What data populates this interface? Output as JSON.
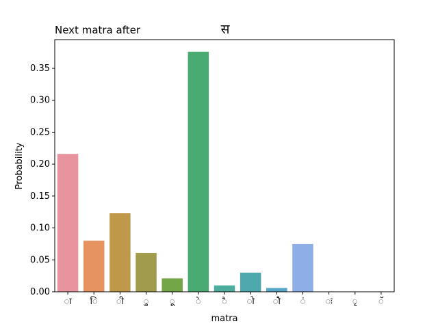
{
  "chart_data": {
    "type": "bar",
    "title_left": "Next matra after",
    "title_center": "स",
    "xlabel": "matra",
    "ylabel": "Probability",
    "categories": [
      "ा",
      "ि",
      "ी",
      "ु",
      "ू",
      "े",
      "ै",
      "ो",
      "ौ",
      "ं",
      "ः",
      "ृ",
      "ॅ"
    ],
    "values": [
      0.216,
      0.08,
      0.123,
      0.061,
      0.021,
      0.376,
      0.01,
      0.03,
      0.006,
      0.075,
      0.0,
      0.0,
      0.0
    ],
    "colors": [
      "#e8949f",
      "#e6935f",
      "#c0984a",
      "#a09c4c",
      "#72a647",
      "#4aab72",
      "#4dad9c",
      "#4ea8ae",
      "#56a6c8",
      "#8daee6",
      "#c29ee8",
      "#e88ed8",
      "#e88fb4"
    ],
    "ylim": [
      0,
      0.395
    ],
    "yticks": [
      "0.00",
      "0.05",
      "0.10",
      "0.15",
      "0.20",
      "0.25",
      "0.30",
      "0.35"
    ],
    "grid": false
  }
}
